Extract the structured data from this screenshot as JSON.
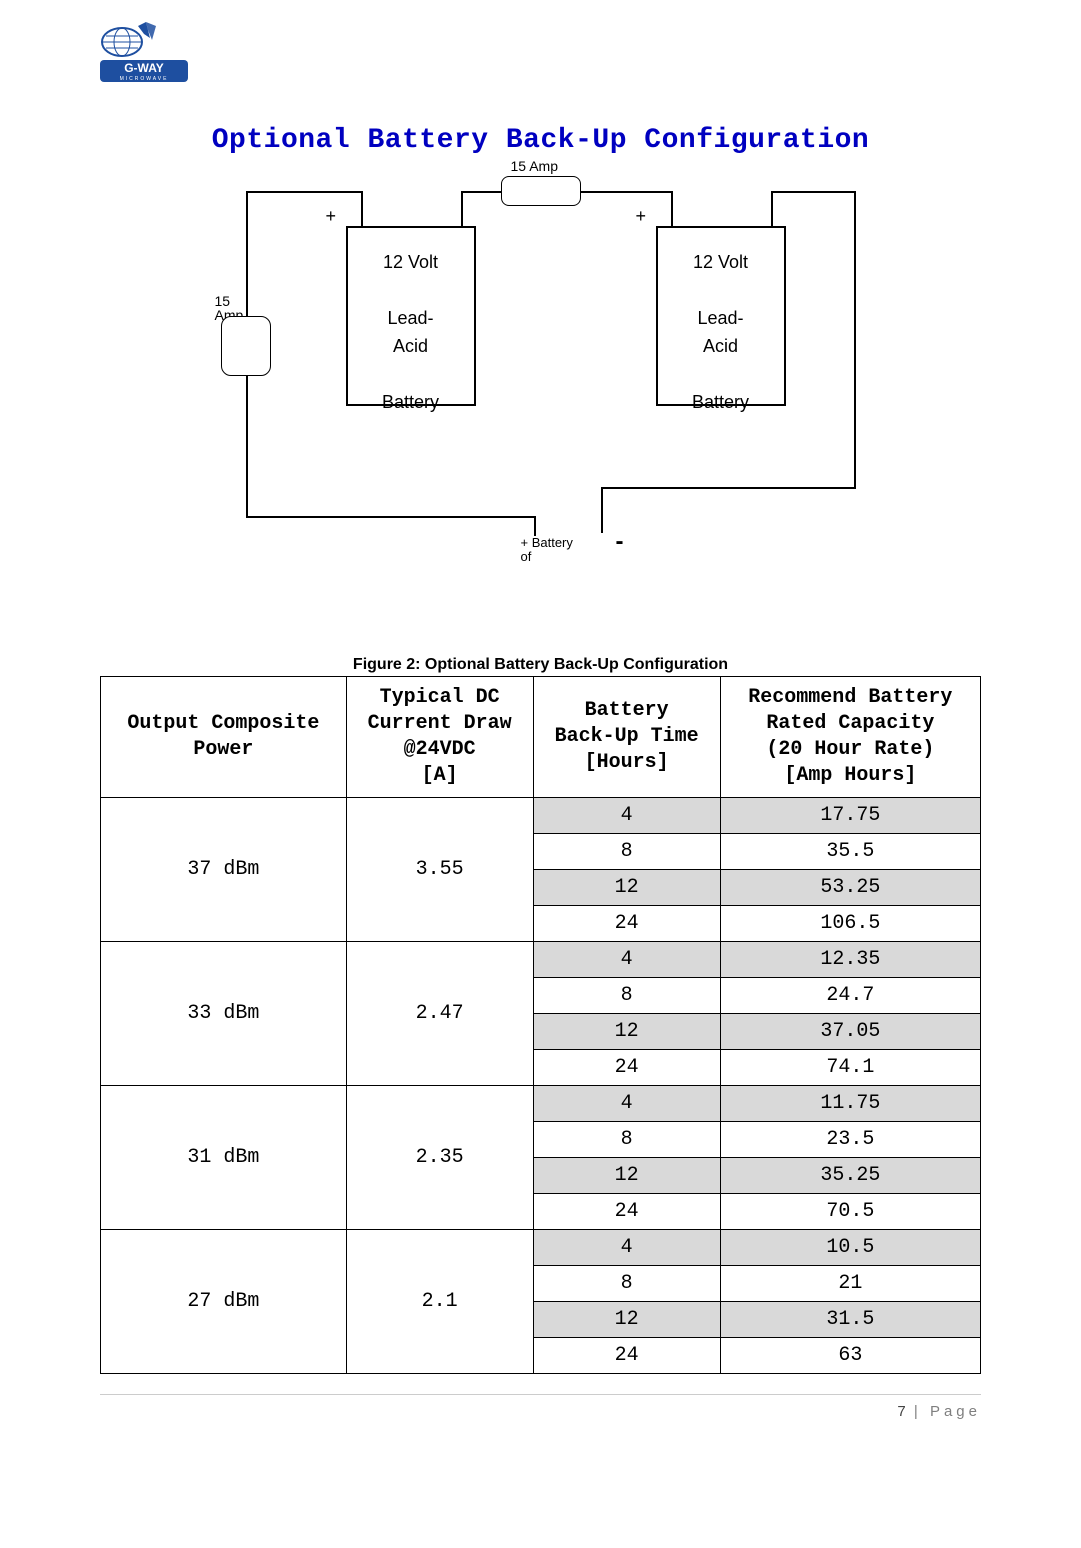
{
  "logo": {
    "top_text": "G-WAY",
    "bottom_text": "MICROWAVE"
  },
  "title": "Optional Battery Back-Up Configuration",
  "diagram": {
    "fuse_top": "15 Amp",
    "fuse_left_line1": "15",
    "fuse_left_line2": "Amp",
    "battery_line1": "12 Volt",
    "battery_line2": "Lead-",
    "battery_line3": "Acid",
    "battery_line4": "Battery",
    "plus": "+",
    "minus": "-",
    "out_line1": "+ Battery",
    "out_line2": "of"
  },
  "figure_caption": "Figure 2: Optional Battery Back-Up Configuration",
  "table": {
    "headers": {
      "c1_l1": "Output Composite",
      "c1_l2": "Power",
      "c2_l1": "Typical DC",
      "c2_l2": "Current  Draw",
      "c2_l3": "@24VDC",
      "c2_l4": "[A]",
      "c3_l1": "Battery",
      "c3_l2": "Back-Up Time",
      "c3_l3": "[Hours]",
      "c4_l1": "Recommend Battery",
      "c4_l2": "Rated Capacity",
      "c4_l3": "(20 Hour Rate)",
      "c4_l4": "[Amp Hours]"
    },
    "groups": [
      {
        "power": "37 dBm",
        "draw": "3.55",
        "rows": [
          {
            "h": "4",
            "c": "17.75"
          },
          {
            "h": "8",
            "c": "35.5"
          },
          {
            "h": "12",
            "c": "53.25"
          },
          {
            "h": "24",
            "c": "106.5"
          }
        ]
      },
      {
        "power": "33 dBm",
        "draw": "2.47",
        "rows": [
          {
            "h": "4",
            "c": "12.35"
          },
          {
            "h": "8",
            "c": "24.7"
          },
          {
            "h": "12",
            "c": "37.05"
          },
          {
            "h": "24",
            "c": "74.1"
          }
        ]
      },
      {
        "power": "31 dBm",
        "draw": "2.35",
        "rows": [
          {
            "h": "4",
            "c": "11.75"
          },
          {
            "h": "8",
            "c": "23.5"
          },
          {
            "h": "12",
            "c": "35.25"
          },
          {
            "h": "24",
            "c": "70.5"
          }
        ]
      },
      {
        "power": "27 dBm",
        "draw": "2.1",
        "rows": [
          {
            "h": "4",
            "c": "10.5"
          },
          {
            "h": "8",
            "c": "21"
          },
          {
            "h": "12",
            "c": "31.5"
          },
          {
            "h": "24",
            "c": "63"
          }
        ]
      }
    ]
  },
  "footer": {
    "page_num": "7",
    "sep": " | ",
    "label": "Page"
  }
}
